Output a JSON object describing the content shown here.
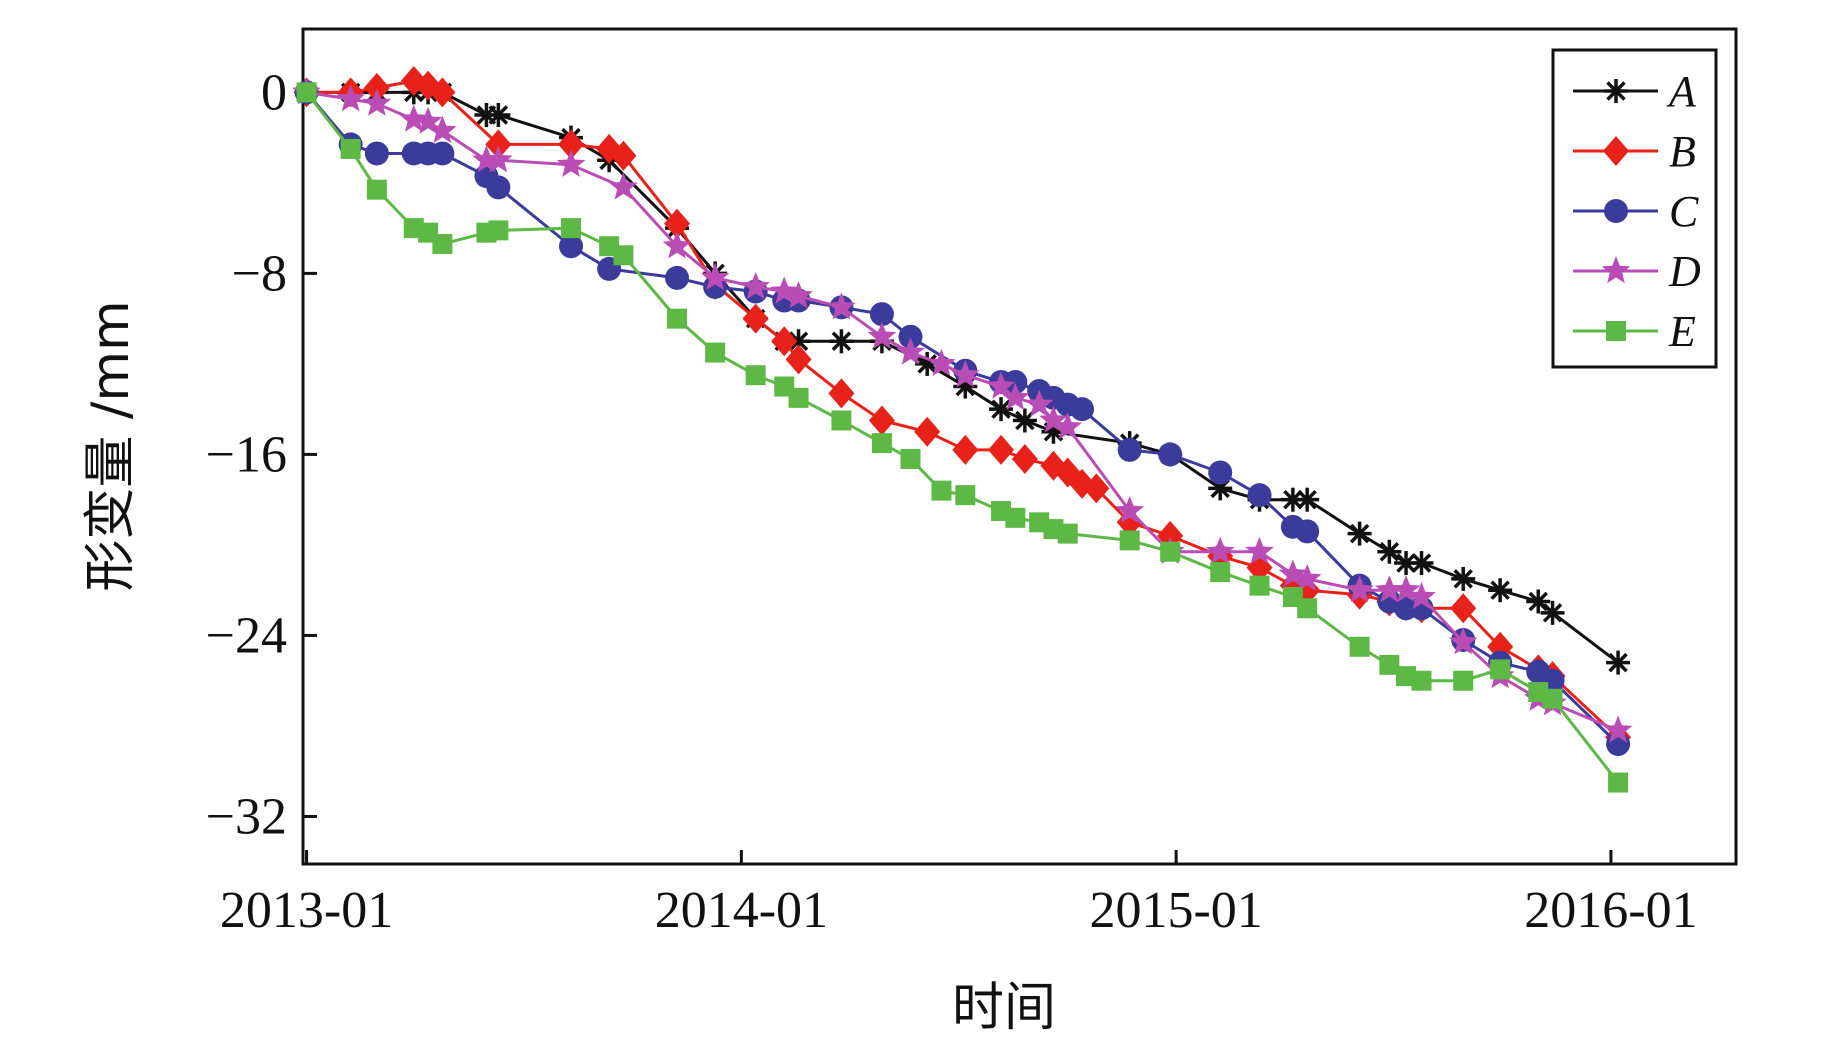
{
  "chart_data": {
    "type": "line",
    "xlabel": "时间",
    "ylabel": "形变量 /mm",
    "x_ticks": [
      "2013-01",
      "2014-01",
      "2015-01",
      "2016-01"
    ],
    "y_ticks": [
      0,
      -8,
      -16,
      -24,
      -32
    ],
    "xlim": [
      "2012-12-29",
      "2016-04-15"
    ],
    "ylim": [
      -34.1,
      2.8
    ],
    "grid": false,
    "legend_position": "top-right",
    "series": [
      {
        "name": "A",
        "color": "#111111",
        "marker": "asterisk",
        "x": [
          "2013-01-01",
          "2013-02-07",
          "2013-03-01",
          "2013-04-01",
          "2013-04-13",
          "2013-04-25",
          "2013-06-01",
          "2013-06-11",
          "2013-08-11",
          "2013-09-12",
          "2013-11-08",
          "2013-12-10",
          "2014-01-13",
          "2014-02-06",
          "2014-02-18",
          "2014-03-26",
          "2014-04-29",
          "2014-06-06",
          "2014-07-08",
          "2014-08-07",
          "2014-08-27",
          "2014-09-20",
          "2014-11-23",
          "2014-12-27",
          "2015-02-07",
          "2015-03-12",
          "2015-04-09",
          "2015-04-21",
          "2015-06-04",
          "2015-06-29",
          "2015-07-13",
          "2015-07-26",
          "2015-08-30",
          "2015-09-30",
          "2015-11-01",
          "2015-11-13",
          "2016-01-07"
        ],
        "y": [
          0,
          0,
          0,
          0,
          0,
          0,
          -1,
          -1,
          -2,
          -3,
          -6,
          -8,
          -10,
          -11,
          -11,
          -11,
          -11,
          -12,
          -13,
          -14,
          -14.5,
          -15,
          -15.5,
          -16,
          -17.5,
          -18,
          -18,
          -18,
          -19.5,
          -20.3,
          -20.8,
          -20.8,
          -21.5,
          -22,
          -22.5,
          -23,
          -25.2
        ]
      },
      {
        "name": "B",
        "color": "#e8211a",
        "marker": "diamond",
        "x": [
          "2013-01-01",
          "2013-02-07",
          "2013-03-01",
          "2013-04-01",
          "2013-04-13",
          "2013-04-25",
          "2013-06-11",
          "2013-08-11",
          "2013-09-12",
          "2013-09-24",
          "2013-11-08",
          "2013-12-10",
          "2014-01-13",
          "2014-02-06",
          "2014-02-18",
          "2014-03-26",
          "2014-04-29",
          "2014-06-06",
          "2014-07-08",
          "2014-08-07",
          "2014-08-27",
          "2014-09-20",
          "2014-10-02",
          "2014-10-14",
          "2014-10-26",
          "2014-11-23",
          "2014-12-27",
          "2015-02-07",
          "2015-03-12",
          "2015-04-09",
          "2015-04-21",
          "2015-06-04",
          "2015-06-29",
          "2015-07-13",
          "2015-07-26",
          "2015-08-30",
          "2015-09-30",
          "2015-11-01",
          "2015-11-13",
          "2016-01-07"
        ],
        "y": [
          0,
          0,
          0.2,
          0.5,
          0.3,
          0,
          -2.3,
          -2.3,
          -2.5,
          -2.8,
          -5.8,
          -8.5,
          -10,
          -11,
          -11.8,
          -13.3,
          -14.5,
          -15,
          -15.8,
          -15.8,
          -16.2,
          -16.5,
          -16.8,
          -17.3,
          -17.5,
          -19,
          -19.6,
          -20.5,
          -21,
          -21.8,
          -22,
          -22.2,
          -22.5,
          -22.7,
          -22.8,
          -22.8,
          -24.5,
          -25.5,
          -25.8,
          -28.5
        ]
      },
      {
        "name": "C",
        "color": "#3b3b9b",
        "marker": "circle",
        "x": [
          "2013-01-01",
          "2013-02-07",
          "2013-03-01",
          "2013-04-01",
          "2013-04-13",
          "2013-04-25",
          "2013-06-01",
          "2013-06-11",
          "2013-08-11",
          "2013-09-12",
          "2013-11-08",
          "2013-12-10",
          "2014-01-13",
          "2014-02-06",
          "2014-02-18",
          "2014-03-26",
          "2014-04-29",
          "2014-05-23",
          "2014-07-08",
          "2014-08-07",
          "2014-08-19",
          "2014-09-08",
          "2014-09-20",
          "2014-10-02",
          "2014-10-14",
          "2014-11-23",
          "2014-12-27",
          "2015-02-07",
          "2015-03-12",
          "2015-04-09",
          "2015-04-21",
          "2015-06-04",
          "2015-06-29",
          "2015-07-13",
          "2015-07-26",
          "2015-08-30",
          "2015-09-30",
          "2015-11-01",
          "2015-11-13",
          "2016-01-07"
        ],
        "y": [
          0,
          -2.3,
          -2.7,
          -2.7,
          -2.7,
          -2.7,
          -3.7,
          -4.2,
          -6.8,
          -7.8,
          -8.2,
          -8.6,
          -8.8,
          -9.2,
          -9.2,
          -9.5,
          -9.8,
          -10.8,
          -12.3,
          -12.8,
          -12.8,
          -13.2,
          -13.5,
          -13.8,
          -14,
          -15.8,
          -16,
          -16.8,
          -17.8,
          -19.2,
          -19.4,
          -21.8,
          -22.5,
          -22.8,
          -22.8,
          -24.2,
          -25.2,
          -25.6,
          -26,
          -28.8
        ]
      },
      {
        "name": "D",
        "color": "#b94db5",
        "marker": "star",
        "x": [
          "2013-01-01",
          "2013-02-07",
          "2013-03-01",
          "2013-04-01",
          "2013-04-13",
          "2013-04-25",
          "2013-06-01",
          "2013-06-11",
          "2013-08-11",
          "2013-09-24",
          "2013-11-08",
          "2013-12-10",
          "2014-01-13",
          "2014-02-06",
          "2014-02-18",
          "2014-03-26",
          "2014-04-29",
          "2014-05-23",
          "2014-06-18",
          "2014-07-08",
          "2014-08-07",
          "2014-08-19",
          "2014-09-08",
          "2014-09-20",
          "2014-10-02",
          "2014-11-23",
          "2014-12-27",
          "2015-02-07",
          "2015-03-12",
          "2015-04-09",
          "2015-04-21",
          "2015-06-04",
          "2015-06-29",
          "2015-07-13",
          "2015-07-26",
          "2015-08-30",
          "2015-09-30",
          "2015-11-01",
          "2015-11-13",
          "2016-01-07"
        ],
        "y": [
          0,
          -0.3,
          -0.5,
          -1.2,
          -1.3,
          -1.7,
          -3,
          -3,
          -3.2,
          -4.2,
          -6.8,
          -8.2,
          -8.6,
          -8.8,
          -9,
          -9.5,
          -10.8,
          -11.5,
          -12,
          -12.5,
          -13,
          -13.5,
          -13.8,
          -14.5,
          -14.8,
          -18.5,
          -20.3,
          -20.3,
          -20.3,
          -21.3,
          -21.5,
          -22,
          -22,
          -22,
          -22.3,
          -24.3,
          -25.8,
          -26.8,
          -27,
          -28.2
        ]
      },
      {
        "name": "E",
        "color": "#5db845",
        "marker": "square",
        "x": [
          "2013-01-01",
          "2013-02-07",
          "2013-03-01",
          "2013-04-01",
          "2013-04-13",
          "2013-04-25",
          "2013-06-01",
          "2013-06-11",
          "2013-08-11",
          "2013-09-12",
          "2013-09-24",
          "2013-11-08",
          "2013-12-10",
          "2014-01-13",
          "2014-02-06",
          "2014-02-18",
          "2014-03-26",
          "2014-04-29",
          "2014-05-23",
          "2014-06-18",
          "2014-07-08",
          "2014-08-07",
          "2014-08-19",
          "2014-09-08",
          "2014-09-20",
          "2014-10-02",
          "2014-11-23",
          "2014-12-27",
          "2015-02-07",
          "2015-03-12",
          "2015-04-09",
          "2015-04-21",
          "2015-06-04",
          "2015-06-29",
          "2015-07-13",
          "2015-07-26",
          "2015-08-30",
          "2015-09-30",
          "2015-11-01",
          "2015-11-13",
          "2016-01-07"
        ],
        "y": [
          0,
          -2.5,
          -4.3,
          -6,
          -6.2,
          -6.7,
          -6.2,
          -6.1,
          -6,
          -6.8,
          -7.2,
          -10,
          -11.5,
          -12.5,
          -13,
          -13.5,
          -14.5,
          -15.5,
          -16.2,
          -17.6,
          -17.8,
          -18.5,
          -18.8,
          -19,
          -19.3,
          -19.5,
          -19.8,
          -20.3,
          -21.2,
          -21.8,
          -22.3,
          -22.8,
          -24.5,
          -25.3,
          -25.8,
          -26,
          -26,
          -25.5,
          -26.5,
          -26.8,
          -30.5
        ]
      }
    ]
  }
}
